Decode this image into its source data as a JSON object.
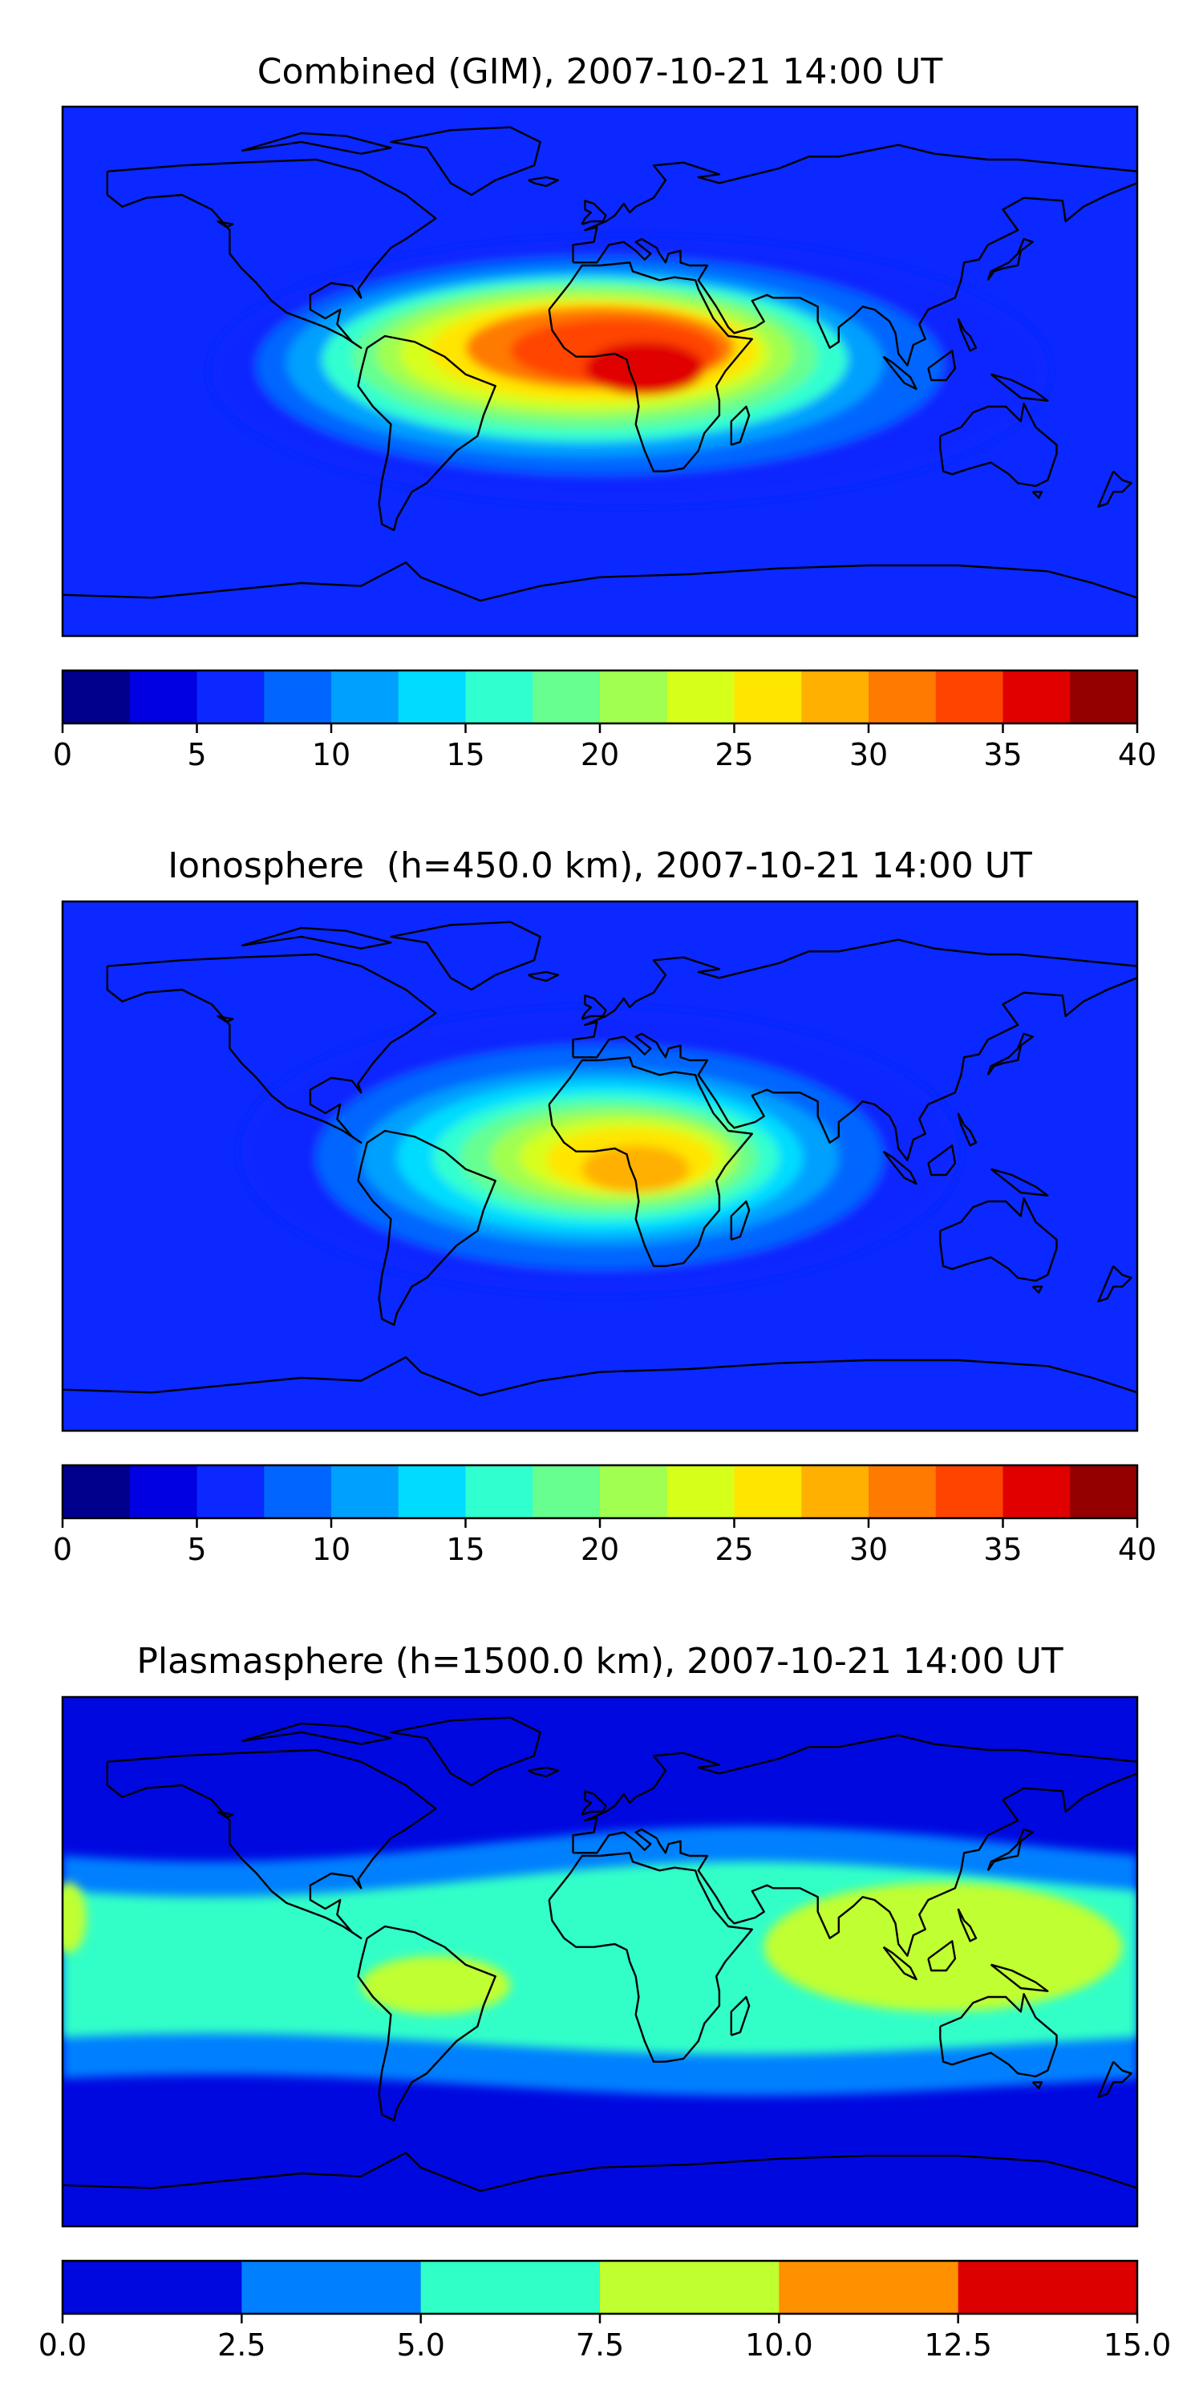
{
  "chart_data": [
    {
      "type": "heatmap",
      "title": "Combined (GIM), 2007-10-21 14:00 UT",
      "field_description": "Global vertical electron content contour map with coastlines",
      "colorbar": {
        "levels": [
          0,
          2.5,
          5,
          7.5,
          10,
          12.5,
          15,
          17.5,
          20,
          22.5,
          25,
          27.5,
          30,
          32.5,
          35,
          37.5,
          40
        ],
        "colors": [
          "#00008c",
          "#0000e0",
          "#0a28ff",
          "#0066ff",
          "#00a0ff",
          "#00dcff",
          "#30ffd0",
          "#66ff90",
          "#a0ff50",
          "#d6ff1a",
          "#ffe600",
          "#ffb000",
          "#ff7a00",
          "#ff4400",
          "#e00000",
          "#940000"
        ],
        "ticks": [
          0,
          5,
          10,
          15,
          20,
          25,
          30,
          35,
          40
        ],
        "tick_labels": [
          "0",
          "5",
          "10",
          "15",
          "20",
          "25",
          "30",
          "35",
          "40"
        ]
      },
      "blobs": [
        {
          "lon": 10,
          "lat": 0,
          "rx": 140,
          "ry": 45,
          "value": 6
        },
        {
          "lon": 0,
          "lat": 2,
          "rx": 115,
          "ry": 37,
          "value": 9
        },
        {
          "lon": -5,
          "lat": 3,
          "rx": 100,
          "ry": 32,
          "value": 12
        },
        {
          "lon": -5,
          "lat": 4,
          "rx": 88,
          "ry": 28,
          "value": 15
        },
        {
          "lon": -5,
          "lat": 5,
          "rx": 78,
          "ry": 25,
          "value": 18
        },
        {
          "lon": -5,
          "lat": 6,
          "rx": 70,
          "ry": 22,
          "value": 21
        },
        {
          "lon": -5,
          "lat": 6,
          "rx": 62,
          "ry": 19,
          "value": 24
        },
        {
          "lon": -2,
          "lat": 7,
          "rx": 55,
          "ry": 17,
          "value": 27
        },
        {
          "lon": 0,
          "lat": 8,
          "rx": 45,
          "ry": 14,
          "value": 30
        },
        {
          "lon": 5,
          "lat": 7,
          "rx": 35,
          "ry": 11,
          "value": 33
        },
        {
          "lon": 15,
          "lat": 1,
          "rx": 20,
          "ry": 9,
          "value": 36
        }
      ]
    },
    {
      "type": "heatmap",
      "title": "Ionosphere  (h=450.0 km), 2007-10-21 14:00 UT",
      "field_description": "Ionospheric electron content contour map with coastlines",
      "colorbar": {
        "levels": [
          0,
          2.5,
          5,
          7.5,
          10,
          12.5,
          15,
          17.5,
          20,
          22.5,
          25,
          27.5,
          30,
          32.5,
          35,
          37.5,
          40
        ],
        "colors": [
          "#00008c",
          "#0000e0",
          "#0a28ff",
          "#0066ff",
          "#00a0ff",
          "#00dcff",
          "#30ffd0",
          "#66ff90",
          "#a0ff50",
          "#d6ff1a",
          "#ffe600",
          "#ffb000",
          "#ff7a00",
          "#ff4400",
          "#e00000",
          "#940000"
        ],
        "ticks": [
          0,
          5,
          10,
          15,
          20,
          25,
          30,
          35,
          40
        ],
        "tick_labels": [
          "0",
          "5",
          "10",
          "15",
          "20",
          "25",
          "30",
          "35",
          "40"
        ]
      },
      "blobs": [
        {
          "lon": 0,
          "lat": 5,
          "rx": 120,
          "ry": 48,
          "value": 6
        },
        {
          "lon": 0,
          "lat": 3,
          "rx": 95,
          "ry": 38,
          "value": 9
        },
        {
          "lon": 0,
          "lat": 3,
          "rx": 80,
          "ry": 30,
          "value": 11
        },
        {
          "lon": 0,
          "lat": 3,
          "rx": 68,
          "ry": 26,
          "value": 14
        },
        {
          "lon": 2,
          "lat": 3,
          "rx": 58,
          "ry": 22,
          "value": 16
        },
        {
          "lon": 3,
          "lat": 3,
          "rx": 50,
          "ry": 19,
          "value": 19
        },
        {
          "lon": 5,
          "lat": 3,
          "rx": 42,
          "ry": 16,
          "value": 21
        },
        {
          "lon": 8,
          "lat": 3,
          "rx": 35,
          "ry": 13,
          "value": 24
        },
        {
          "lon": 10,
          "lat": 2,
          "rx": 28,
          "ry": 11,
          "value": 26
        },
        {
          "lon": 12,
          "lat": -1,
          "rx": 18,
          "ry": 8,
          "value": 28
        }
      ]
    },
    {
      "type": "heatmap",
      "title": "Plasmasphere (h=1500.0 km), 2007-10-21 14:00 UT",
      "field_description": "Plasmaspheric electron content contour map with coastlines",
      "colorbar": {
        "levels": [
          0,
          2.5,
          5,
          7.5,
          10,
          12.5,
          15
        ],
        "colors": [
          "#0008e0",
          "#0080ff",
          "#30ffc8",
          "#c0ff30",
          "#ff9000",
          "#dd0000"
        ],
        "ticks": [
          0,
          2.5,
          5,
          7.5,
          10,
          12.5,
          15
        ],
        "tick_labels": [
          "0.0",
          "2.5",
          "5.0",
          "7.5",
          "10.0",
          "12.5",
          "15.0"
        ]
      },
      "band_values": {
        "outer": 1,
        "mid": 4,
        "inner": 6
      },
      "blobs": [
        {
          "lon": -55,
          "lat": -8,
          "rx": 25,
          "ry": 10,
          "value": 8
        },
        {
          "lon": 115,
          "lat": 5,
          "rx": 60,
          "ry": 22,
          "value": 8
        },
        {
          "lon": -178,
          "lat": 15,
          "rx": 6,
          "ry": 12,
          "value": 8
        }
      ]
    }
  ]
}
